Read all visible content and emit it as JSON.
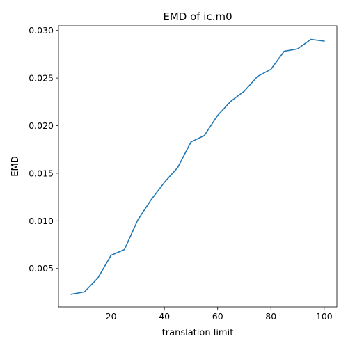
{
  "chart_data": {
    "type": "line",
    "title": "EMD of ic.m0",
    "xlabel": "translation limit",
    "ylabel": "EMD",
    "xlim": [
      0.25,
      104.75
    ],
    "ylim": [
      0.00096,
      0.03049
    ],
    "xticks": [
      20,
      40,
      60,
      80,
      100
    ],
    "yticks": [
      0.005,
      0.01,
      0.015,
      0.02,
      0.025,
      0.03
    ],
    "xtick_labels": [
      "20",
      "40",
      "60",
      "80",
      "100"
    ],
    "ytick_labels": [
      "0.005",
      "0.010",
      "0.015",
      "0.020",
      "0.025",
      "0.030"
    ],
    "grid": false,
    "series": [
      {
        "color": "#1f77b4",
        "x": [
          5,
          10,
          15,
          20,
          25,
          30,
          35,
          40,
          45,
          50,
          55,
          60,
          65,
          70,
          75,
          80,
          85,
          90,
          95,
          100
        ],
        "y": [
          0.00229,
          0.00254,
          0.00398,
          0.00639,
          0.00698,
          0.01008,
          0.0122,
          0.01404,
          0.0156,
          0.01829,
          0.01896,
          0.02108,
          0.02258,
          0.02362,
          0.02518,
          0.02592,
          0.02782,
          0.02806,
          0.02906,
          0.02888
        ]
      }
    ]
  }
}
